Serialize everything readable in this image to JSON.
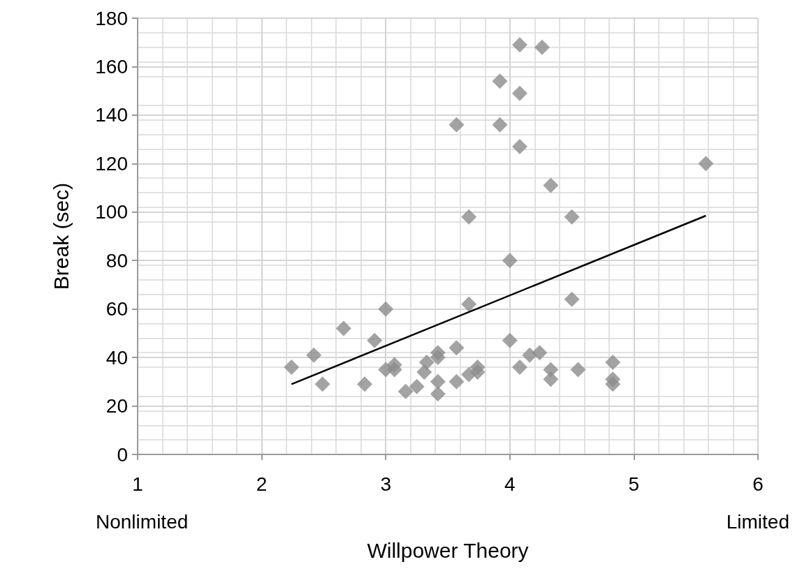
{
  "chart_data": {
    "type": "scatter",
    "xlabel": "Willpower Theory",
    "ylabel": "Break (sec)",
    "xlim": [
      1,
      6
    ],
    "xticks": [
      1,
      2,
      3,
      4,
      5,
      6
    ],
    "ylim": [
      0,
      180
    ],
    "yticks": [
      0,
      20,
      40,
      60,
      80,
      100,
      120,
      140,
      160,
      180
    ],
    "grid": true,
    "marker": "diamond",
    "annotations": [
      "Nonlimited",
      "Limited"
    ],
    "series": [
      {
        "color": "#8c8c8c",
        "x": [
          2.24,
          2.42,
          2.49,
          2.66,
          2.83,
          2.91,
          3.0,
          3.0,
          3.07,
          3.07,
          3.16,
          3.25,
          3.33,
          3.31,
          3.42,
          3.42,
          3.42,
          3.42,
          3.57,
          3.57,
          3.67,
          3.67,
          3.74,
          3.74,
          4.0,
          4.08,
          4.16,
          4.24,
          4.33,
          4.33,
          4.5,
          4.55,
          4.83,
          4.83,
          4.83,
          3.92,
          4.08,
          4.26,
          4.08,
          3.57,
          3.92,
          4.08,
          4.33,
          3.67,
          4.5,
          4.0,
          5.58
        ],
        "values": [
          36,
          41,
          29,
          52,
          29,
          47,
          60,
          35,
          37,
          35,
          26,
          28,
          38,
          34,
          42,
          40,
          30,
          25,
          44,
          30,
          62,
          33,
          36,
          34,
          47,
          36,
          41,
          42,
          35,
          31,
          64,
          35,
          38,
          31,
          29,
          154,
          169,
          168,
          149,
          136,
          136,
          127,
          111,
          98,
          98,
          80,
          120
        ]
      },
      {
        "type": "line",
        "color": "#000000",
        "marker": "none",
        "x": [
          2.24,
          5.58
        ],
        "values": [
          29,
          98.5
        ]
      }
    ]
  }
}
